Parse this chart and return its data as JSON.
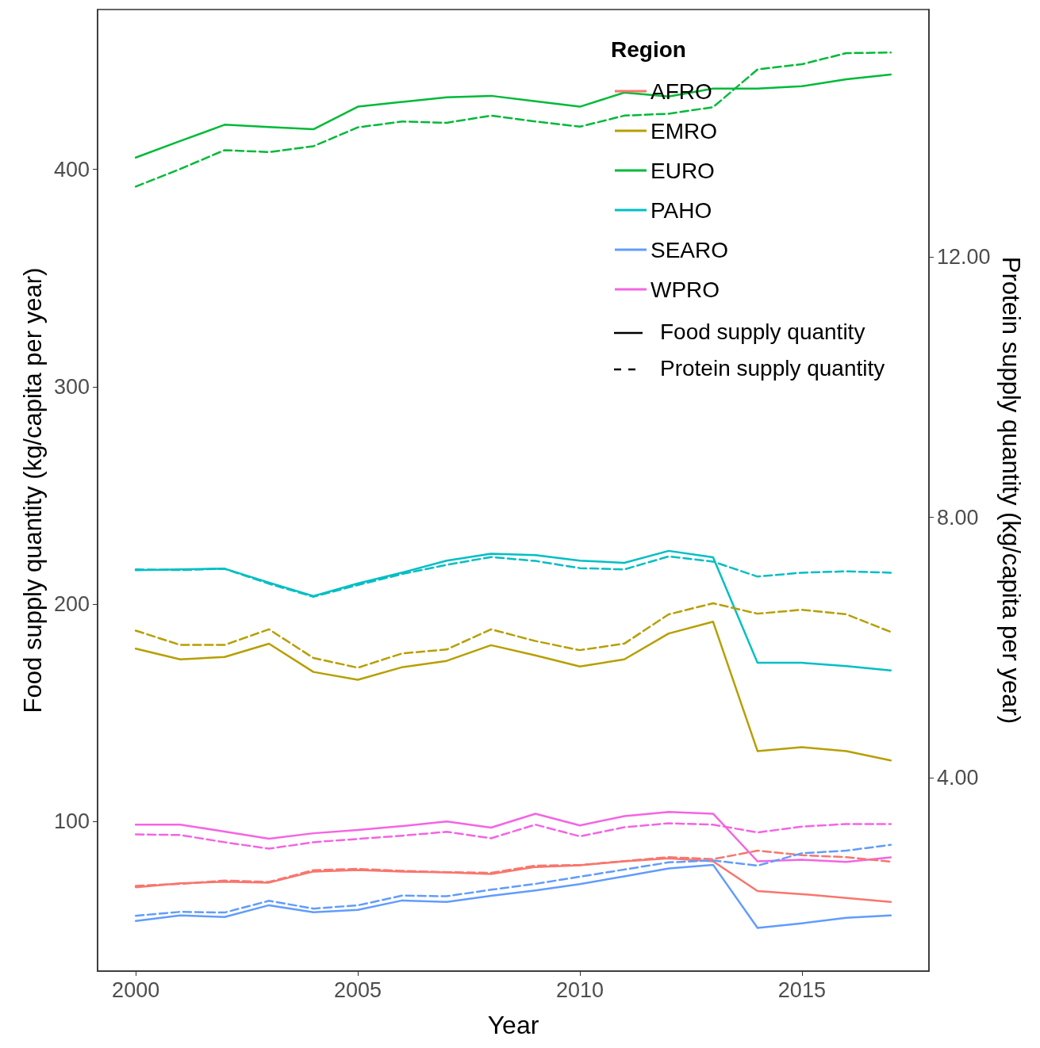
{
  "chart_data": {
    "type": "line",
    "xlabel": "Year",
    "ylabel": "Food supply quantity (kg/capita per year)",
    "y2label": "Protein supply quantity (kg/capita per year)",
    "legend_title": "Region",
    "legend": "top right",
    "grid": false,
    "annotations": [
      "Food supply quantity",
      "Protein supply quantity"
    ],
    "x": [
      2000,
      2001,
      2002,
      2003,
      2004,
      2005,
      2006,
      2007,
      2008,
      2009,
      2010,
      2011,
      2012,
      2013,
      2014,
      2015,
      2016,
      2017
    ],
    "xlim": [
      1999.14,
      2017.86
    ],
    "xticks": [
      2000,
      2005,
      2010,
      2015
    ],
    "ylim": [
      31.2,
      473.5
    ],
    "yticks": [
      100,
      200,
      300,
      400
    ],
    "y2lim": [
      1.03,
      15.8
    ],
    "y2ticks": [
      {
        "value": 4,
        "label": "4.00"
      },
      {
        "value": 8,
        "label": "8.00"
      },
      {
        "value": 12,
        "label": "12.00"
      }
    ],
    "series": [
      {
        "name": "AFRO",
        "color": "#f8766d",
        "line_style": "solid",
        "values": [
          69.8,
          71.6,
          72.3,
          71.9,
          77,
          77.7,
          77,
          76.6,
          75.9,
          79.1,
          79.9,
          81.7,
          83.1,
          81.7,
          68,
          66.6,
          64.8,
          63
        ]
      },
      {
        "name": "EMRO",
        "color": "#b79f00",
        "line_style": "solid",
        "values": [
          179.5,
          174.6,
          175.7,
          181.8,
          168.8,
          165.2,
          171,
          173.9,
          181.1,
          176.4,
          171.3,
          174.6,
          186.5,
          191.9,
          132.4,
          134.2,
          132.4,
          128.1
        ]
      },
      {
        "name": "EURO",
        "color": "#00ba38",
        "line_style": "solid",
        "values": [
          405.4,
          413,
          420.5,
          419.4,
          418.4,
          428.8,
          431,
          433.1,
          433.8,
          431.3,
          428.8,
          435.3,
          433.5,
          437.1,
          437.1,
          438.2,
          441.4,
          443.6
        ]
      },
      {
        "name": "PAHO",
        "color": "#00bfc4",
        "line_style": "solid",
        "values": [
          215.6,
          216,
          216.3,
          209.9,
          203.7,
          209.5,
          214.5,
          220,
          223.2,
          222.5,
          220,
          219,
          224.5,
          221.5,
          173,
          173,
          171.5,
          169.5
        ]
      },
      {
        "name": "SEARO",
        "color": "#619cff",
        "line_style": "solid",
        "values": [
          54.3,
          56.8,
          56.1,
          61.5,
          58.3,
          59.4,
          63.7,
          63,
          65.8,
          68.3,
          71.2,
          74.8,
          78.4,
          80.1,
          51.1,
          53.2,
          55.7,
          56.8
        ]
      },
      {
        "name": "WPRO",
        "color": "#f564e3",
        "line_style": "solid",
        "values": [
          98.6,
          98.6,
          95.4,
          92.1,
          94.6,
          96.1,
          97.9,
          100,
          97.2,
          103.6,
          98.2,
          102.5,
          104.4,
          103.6,
          81.7,
          82.4,
          81.4,
          83.5
        ]
      },
      {
        "color": "#f8766d",
        "line_style": "dashed",
        "axis": "y2",
        "values": [
          2.34,
          2.37,
          2.42,
          2.4,
          2.58,
          2.6,
          2.57,
          2.55,
          2.54,
          2.65,
          2.66,
          2.72,
          2.78,
          2.75,
          2.88,
          2.81,
          2.78,
          2.71
        ]
      },
      {
        "color": "#b79f00",
        "line_style": "dashed",
        "axis": "y2",
        "values": [
          6.26,
          6.04,
          6.04,
          6.28,
          5.84,
          5.69,
          5.91,
          5.97,
          6.28,
          6.1,
          5.96,
          6.06,
          6.51,
          6.68,
          6.52,
          6.58,
          6.51,
          6.24
        ]
      },
      {
        "color": "#00ba38",
        "line_style": "dashed",
        "axis": "y2",
        "values": [
          13.08,
          13.35,
          13.64,
          13.61,
          13.7,
          13.99,
          14.08,
          14.06,
          14.17,
          14.08,
          14,
          14.17,
          14.2,
          14.3,
          14.88,
          14.96,
          15.13,
          15.14
        ]
      },
      {
        "color": "#00bfc4",
        "line_style": "dashed",
        "axis": "y2",
        "values": [
          7.2,
          7.19,
          7.21,
          6.98,
          6.78,
          6.96,
          7.13,
          7.27,
          7.39,
          7.33,
          7.22,
          7.2,
          7.4,
          7.32,
          7.09,
          7.15,
          7.17,
          7.15
        ]
      },
      {
        "color": "#619cff",
        "line_style": "dashed",
        "axis": "y2",
        "values": [
          1.88,
          1.94,
          1.93,
          2.11,
          1.99,
          2.04,
          2.19,
          2.18,
          2.28,
          2.37,
          2.48,
          2.59,
          2.7,
          2.73,
          2.65,
          2.84,
          2.88,
          2.97
        ]
      },
      {
        "color": "#f564e3",
        "line_style": "dashed",
        "axis": "y2",
        "values": [
          3.13,
          3.12,
          3.01,
          2.91,
          3.01,
          3.06,
          3.11,
          3.17,
          3.07,
          3.28,
          3.1,
          3.24,
          3.3,
          3.28,
          3.16,
          3.25,
          3.29,
          3.29
        ]
      }
    ]
  }
}
